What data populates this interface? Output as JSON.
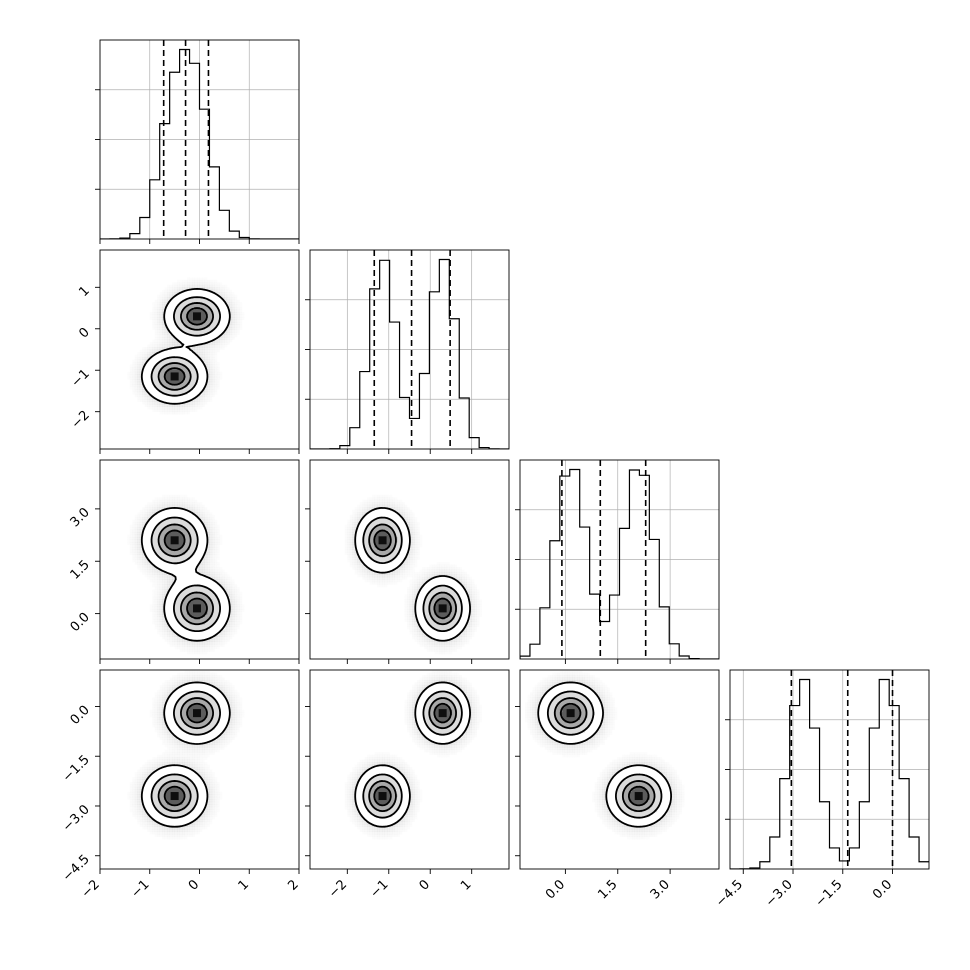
{
  "chart_data": {
    "type": "corner",
    "variables": [
      "",
      "",
      "",
      ""
    ],
    "ranges": [
      [
        -2,
        2
      ],
      [
        -2.9,
        1.9
      ],
      [
        -1.3,
        4.4
      ],
      [
        -4.9,
        1.1
      ]
    ],
    "ticks": [
      {
        "values": [
          -2,
          -1,
          0,
          1,
          2
        ],
        "labels": [
          "−2",
          "−1",
          "0",
          "1",
          "2"
        ]
      },
      {
        "values": [
          -2,
          -1,
          0,
          1
        ],
        "labels": [
          "−2",
          "−1",
          "0",
          "1"
        ]
      },
      {
        "values": [
          0,
          1.5,
          3
        ],
        "labels": [
          "0.0",
          "1.5",
          "3.0"
        ]
      },
      {
        "values": [
          -4.5,
          -3,
          -1.5,
          0
        ],
        "labels": [
          "−4.5",
          "−3.0",
          "−1.5",
          "0.0"
        ]
      }
    ],
    "quantiles": [
      [
        -0.72,
        -0.28,
        0.18
      ],
      [
        -1.35,
        -0.45,
        0.48
      ],
      [
        -0.1,
        1.0,
        2.3
      ],
      [
        -3.05,
        -1.35,
        0.0
      ]
    ],
    "components": [
      {
        "weight": 0.5,
        "mean": [
          -0.05,
          0.3,
          0.15,
          -0.2
        ],
        "std": [
          0.32,
          0.32,
          0.45,
          0.45
        ]
      },
      {
        "weight": 0.5,
        "mean": [
          -0.5,
          -1.15,
          2.1,
          -2.7
        ],
        "std": [
          0.32,
          0.32,
          0.45,
          0.45
        ]
      }
    ],
    "grid": true,
    "bins": 20
  }
}
